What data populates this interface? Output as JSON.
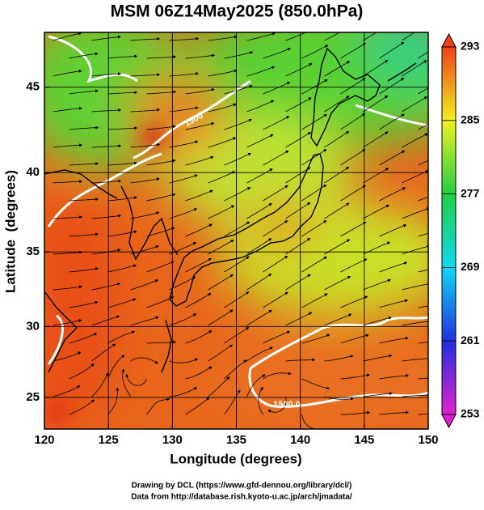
{
  "chart_data": {
    "type": "map",
    "title": "MSM 06Z14May2025 (850.0hPa)",
    "x_label": "Longitude (degrees)",
    "y_label": "Latitude  (degrees)",
    "xlim": [
      120,
      150
    ],
    "xticks": [
      120,
      125,
      130,
      135,
      140,
      145,
      150
    ],
    "ylim": [
      22.7,
      48
    ],
    "yticks": [
      25,
      30,
      35,
      40,
      45
    ],
    "projection": "mercator",
    "grid": true,
    "colorbar": {
      "lim": [
        253,
        293
      ],
      "ticks": [
        253,
        261,
        269,
        277,
        285,
        293
      ],
      "colors": [
        "#e020d0",
        "#2030e0",
        "#10d8f0",
        "#20d040",
        "#f0f020",
        "#f04018"
      ]
    },
    "contour_labels": [
      "1500.0",
      "1500"
    ],
    "credits": [
      "Drawing by DCL (https://www.gfd-dennou.org/library/dcl/)",
      "Data from http://database.rish.kyoto-u.ac.jp/arch/jmadata/"
    ]
  }
}
